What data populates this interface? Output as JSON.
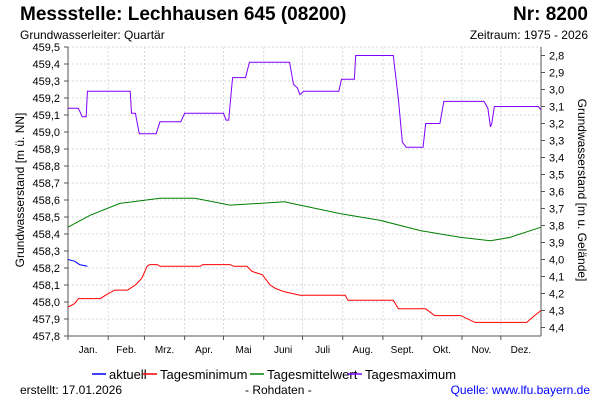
{
  "header": {
    "title": "Messstelle: Lechhausen 645 (08200)",
    "number": "Nr: 8200",
    "aquifer": "Grundwasserleiter: Quartär",
    "period": "Zeitraum: 1975 - 2026"
  },
  "footer": {
    "created_label": "erstellt:",
    "created_date": "17.01.2026",
    "note": "- Rohdaten -",
    "source": "Quelle: www.lfu.bayern.de"
  },
  "chart_data": {
    "type": "line",
    "xlabel": "",
    "ylabel": "Grundwasserstand [m ü. NN]",
    "ylabel_right": "Grundwasserstand [m u. Gelände]",
    "ylim": [
      457.8,
      459.5
    ],
    "yticks": [
      "457,8",
      "457,9",
      "458,0",
      "458,1",
      "458,2",
      "458,3",
      "458,4",
      "458,5",
      "458,6",
      "458,7",
      "458,8",
      "458,9",
      "459,0",
      "459,1",
      "459,2",
      "459,3",
      "459,4",
      "459,5"
    ],
    "yticks_right": [
      "2,8",
      "2,9",
      "3,0",
      "3,1",
      "3,2",
      "3,3",
      "3,4",
      "3,5",
      "3,6",
      "3,7",
      "3,8",
      "3,9",
      "4,0",
      "4,1",
      "4,2",
      "4,3",
      "4,4"
    ],
    "ground_level": 462.25,
    "xlim": [
      0,
      365
    ],
    "months": [
      "Jan.",
      "Feb.",
      "Mrz.",
      "Apr.",
      "Mai",
      "Juni",
      "Juli",
      "Aug.",
      "Sept.",
      "Okt.",
      "Nov.",
      "Dez."
    ],
    "grid": true,
    "legend_placement": "bottom",
    "series": [
      {
        "name": "aktuell",
        "color": "#0000ff",
        "points": [
          [
            0,
            458.25
          ],
          [
            5,
            458.24
          ],
          [
            9,
            458.22
          ],
          [
            15,
            458.21
          ]
        ]
      },
      {
        "name": "Tagesminimum",
        "color": "#ff0000",
        "points": [
          [
            0,
            457.97
          ],
          [
            5,
            457.99
          ],
          [
            8,
            458.02
          ],
          [
            25,
            458.02
          ],
          [
            29,
            458.04
          ],
          [
            36,
            458.07
          ],
          [
            46,
            458.07
          ],
          [
            52,
            458.1
          ],
          [
            57,
            458.14
          ],
          [
            61,
            458.21
          ],
          [
            63,
            458.22
          ],
          [
            69,
            458.22
          ],
          [
            71,
            458.21
          ],
          [
            102,
            458.21
          ],
          [
            104,
            458.22
          ],
          [
            125,
            458.22
          ],
          [
            128,
            458.21
          ],
          [
            138,
            458.21
          ],
          [
            142,
            458.18
          ],
          [
            150,
            458.16
          ],
          [
            156,
            458.1
          ],
          [
            160,
            458.08
          ],
          [
            167,
            458.06
          ],
          [
            179,
            458.04
          ],
          [
            214,
            458.04
          ],
          [
            216,
            458.01
          ],
          [
            251,
            458.01
          ],
          [
            255,
            457.96
          ],
          [
            276,
            457.96
          ],
          [
            283,
            457.92
          ],
          [
            303,
            457.92
          ],
          [
            314,
            457.88
          ],
          [
            354,
            457.88
          ],
          [
            360,
            457.92
          ],
          [
            365,
            457.95
          ]
        ]
      },
      {
        "name": "Tagesmittelwert",
        "color": "#008000",
        "points": [
          [
            0,
            458.44
          ],
          [
            17,
            458.51
          ],
          [
            40,
            458.58
          ],
          [
            71,
            458.61
          ],
          [
            98,
            458.61
          ],
          [
            125,
            458.57
          ],
          [
            148,
            458.58
          ],
          [
            167,
            458.59
          ],
          [
            179,
            458.57
          ],
          [
            210,
            458.52
          ],
          [
            241,
            458.48
          ],
          [
            272,
            458.42
          ],
          [
            303,
            458.38
          ],
          [
            326,
            458.36
          ],
          [
            341,
            458.38
          ],
          [
            365,
            458.44
          ]
        ]
      },
      {
        "name": "Tagesmaximum",
        "color": "#8000ff",
        "points": [
          [
            0,
            459.14
          ],
          [
            8,
            459.14
          ],
          [
            11,
            459.09
          ],
          [
            14,
            459.09
          ],
          [
            15,
            459.24
          ],
          [
            48,
            459.24
          ],
          [
            49,
            459.11
          ],
          [
            52,
            459.11
          ],
          [
            55,
            458.99
          ],
          [
            68,
            458.99
          ],
          [
            71,
            459.06
          ],
          [
            87,
            459.06
          ],
          [
            90,
            459.11
          ],
          [
            120,
            459.11
          ],
          [
            122,
            459.07
          ],
          [
            124,
            459.07
          ],
          [
            127,
            459.32
          ],
          [
            137,
            459.32
          ],
          [
            140,
            459.41
          ],
          [
            171,
            459.41
          ],
          [
            174,
            459.28
          ],
          [
            177,
            459.26
          ],
          [
            179,
            459.22
          ],
          [
            182,
            459.24
          ],
          [
            209,
            459.24
          ],
          [
            211,
            459.31
          ],
          [
            221,
            459.31
          ],
          [
            222,
            459.45
          ],
          [
            251,
            459.45
          ],
          [
            255,
            459.19
          ],
          [
            258,
            458.94
          ],
          [
            261,
            458.91
          ],
          [
            274,
            458.91
          ],
          [
            276,
            459.05
          ],
          [
            287,
            459.05
          ],
          [
            290,
            459.18
          ],
          [
            321,
            459.18
          ],
          [
            324,
            459.14
          ],
          [
            326,
            459.03
          ],
          [
            327,
            459.05
          ],
          [
            329,
            459.15
          ],
          [
            363,
            459.15
          ],
          [
            365,
            459.13
          ]
        ]
      }
    ]
  }
}
